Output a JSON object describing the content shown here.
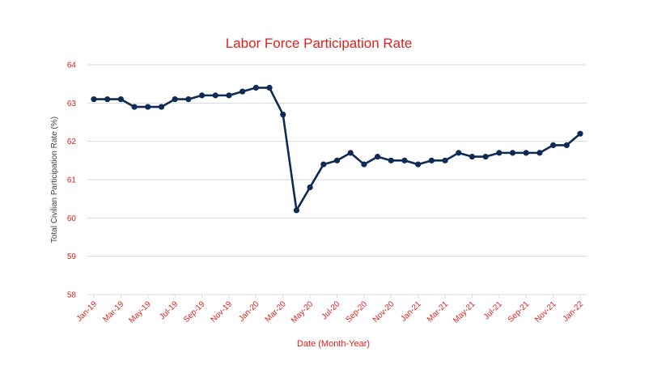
{
  "chart_data": {
    "type": "line",
    "title": "Labor Force Participation Rate",
    "xlabel": "Date (Month-Year)",
    "ylabel": "Total Civilian Participation Rate (%)",
    "ylim": [
      58,
      64
    ],
    "yticks": [
      58,
      59,
      60,
      61,
      62,
      63,
      64
    ],
    "grid": true,
    "legend": "none",
    "x": [
      "Jan-19",
      "Feb-19",
      "Mar-19",
      "Apr-19",
      "May-19",
      "Jun-19",
      "Jul-19",
      "Aug-19",
      "Sep-19",
      "Oct-19",
      "Nov-19",
      "Dec-19",
      "Jan-20",
      "Feb-20",
      "Mar-20",
      "Apr-20",
      "May-20",
      "Jun-20",
      "Jul-20",
      "Aug-20",
      "Sep-20",
      "Oct-20",
      "Nov-20",
      "Dec-20",
      "Jan-21",
      "Feb-21",
      "Mar-21",
      "Apr-21",
      "May-21",
      "Jun-21",
      "Jul-21",
      "Aug-21",
      "Sep-21",
      "Oct-21",
      "Nov-21",
      "Dec-21",
      "Jan-22"
    ],
    "xtick_labels": [
      "Jan-19",
      "Mar-19",
      "May-19",
      "Jul-19",
      "Sep-19",
      "Nov-19",
      "Jan-20",
      "Mar-20",
      "May-20",
      "Jul-20",
      "Sep-20",
      "Nov-20",
      "Jan-21",
      "Mar-21",
      "May-21",
      "Jul-21",
      "Sep-21",
      "Nov-21",
      "Jan-22"
    ],
    "series": [
      {
        "values": [
          63.1,
          63.1,
          63.1,
          62.9,
          62.9,
          62.9,
          63.1,
          63.1,
          63.2,
          63.2,
          63.2,
          63.3,
          63.4,
          63.4,
          62.7,
          60.2,
          60.8,
          61.4,
          61.5,
          61.7,
          61.4,
          61.6,
          61.5,
          61.5,
          61.4,
          61.5,
          61.5,
          61.7,
          61.6,
          61.6,
          61.7,
          61.7,
          61.7,
          61.7,
          61.9,
          61.9,
          62.2
        ]
      }
    ],
    "colors": {
      "line": "#0d2b55",
      "title": "#e0201e",
      "tick": "#e0201e",
      "grid": "#d9d9d9"
    }
  }
}
